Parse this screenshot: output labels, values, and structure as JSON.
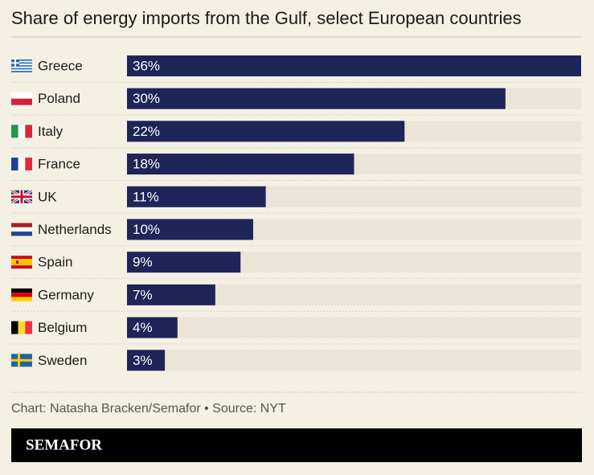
{
  "chart_data": {
    "type": "hbar",
    "title": "Share of energy imports from the Gulf, select European countries",
    "categories": [
      "Greece",
      "Poland",
      "Italy",
      "France",
      "UK",
      "Netherlands",
      "Spain",
      "Germany",
      "Belgium",
      "Sweden"
    ],
    "values": [
      36,
      30,
      22,
      18,
      11,
      10,
      9,
      7,
      4,
      3
    ],
    "value_labels": [
      "36%",
      "30%",
      "22%",
      "18%",
      "11%",
      "10%",
      "9%",
      "7%",
      "4%",
      "3%"
    ],
    "color": "#1f2459",
    "source": "Chart: Natasha Bracken/Semafor • Source: NYT",
    "brand": "SEMAFOR"
  }
}
